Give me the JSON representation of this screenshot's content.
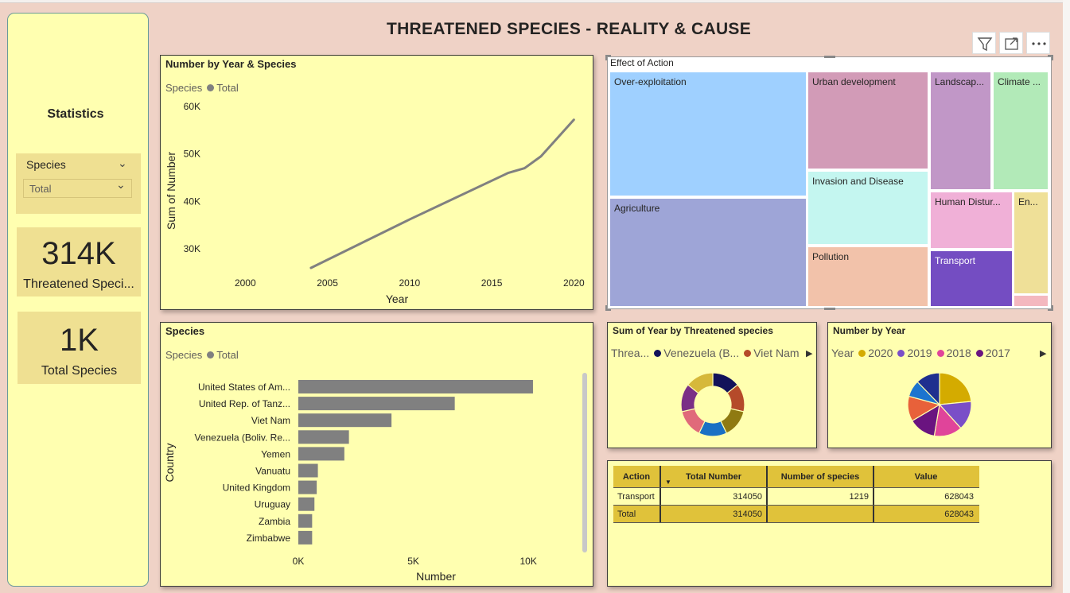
{
  "header": {
    "title": "THREATENED SPECIES - REALITY & CAUSE"
  },
  "sidebar": {
    "statistics_label": "Statistics",
    "slicer": {
      "label": "Species",
      "selected": "Total"
    },
    "card1": {
      "value": "314K",
      "label": "Threatened Speci..."
    },
    "card2": {
      "value": "1K",
      "label": "Total Species"
    }
  },
  "toolbar": {
    "filter_icon": "filter-icon",
    "focus_icon": "expand-icon",
    "more_icon": "more-options-icon"
  },
  "colors": {
    "page_bg": "#efd2c6",
    "panel_bg": "#ffffb0",
    "series_gray": "#808080",
    "table_header": "#e0c23a"
  },
  "chart_data": [
    {
      "id": "line",
      "type": "line",
      "title": "Number by Year & Species",
      "legend_title": "Species",
      "legend_items": [
        "Total"
      ],
      "xlabel": "Year",
      "ylabel": "Sum of Number",
      "xlim": [
        1998,
        2021
      ],
      "ylim": [
        26000,
        62000
      ],
      "x_ticks": [
        "2000",
        "2005",
        "2010",
        "2015",
        "2020"
      ],
      "y_ticks": [
        "30K",
        "40K",
        "50K",
        "60K"
      ],
      "series": [
        {
          "name": "Total",
          "x": [
            2004,
            2010,
            2016,
            2017,
            2018,
            2020
          ],
          "y": [
            26000,
            36200,
            46000,
            47000,
            49500,
            57200
          ]
        }
      ]
    },
    {
      "id": "bar",
      "type": "bar",
      "title": "Species",
      "legend_title": "Species",
      "legend_items": [
        "Total"
      ],
      "xlabel": "Number",
      "ylabel": "Country",
      "xlim": [
        0,
        12000
      ],
      "x_ticks": [
        "0K",
        "5K",
        "10K"
      ],
      "categories": [
        "United States of Am...",
        "United Rep. of Tanz...",
        "Viet Nam",
        "Venezuela (Boliv. Re...",
        "Yemen",
        "Vanuatu",
        "United Kingdom",
        "Uruguay",
        "Zambia",
        "Zimbabwe"
      ],
      "values": [
        10200,
        6800,
        4050,
        2200,
        2000,
        850,
        800,
        700,
        600,
        600
      ]
    },
    {
      "id": "treemap",
      "type": "treemap",
      "title": "Effect of Action",
      "labels": [
        "Over-exploitation",
        "Agriculture",
        "Urban development",
        "Invasion and Disease",
        "Pollution",
        "Landscap...",
        "Climate ...",
        "Human Distur...",
        "En...",
        "Transport"
      ]
    },
    {
      "id": "donut",
      "type": "pie",
      "title": "Sum of Year by Threatened species",
      "legend_title": "Threa...",
      "legend_items": [
        "Venezuela (B...",
        "Viet Nam"
      ],
      "legend_colors": [
        "#12125a",
        "#b54a2a"
      ],
      "colors": [
        "#12125a",
        "#b54a2a",
        "#8f7a12",
        "#1a70c4",
        "#e06a7a",
        "#7a2f86",
        "#d6b83a"
      ],
      "values": [
        1,
        1,
        1,
        1,
        1,
        1,
        1
      ]
    },
    {
      "id": "pie",
      "type": "pie",
      "title": "Number by Year",
      "legend_title": "Year",
      "legend_items": [
        "2020",
        "2019",
        "2018",
        "2017"
      ],
      "legend_colors": [
        "#d4ab00",
        "#7a4ec8",
        "#e0449a",
        "#6a1480"
      ],
      "colors": [
        "#d4ab00",
        "#7a4ec8",
        "#e0449a",
        "#6a1480",
        "#e8613a",
        "#1c74cf",
        "#1f2f8f"
      ],
      "values": [
        2.2,
        1.4,
        1.35,
        1.3,
        1.2,
        0.8,
        1.15
      ]
    },
    {
      "id": "table",
      "type": "table",
      "columns": [
        "Action",
        "Total Number",
        "Number of species",
        "Value"
      ],
      "rows": [
        [
          "Transport",
          "314050",
          "1219",
          "628043"
        ]
      ],
      "total": [
        "Total",
        "314050",
        "",
        "628043"
      ]
    }
  ]
}
